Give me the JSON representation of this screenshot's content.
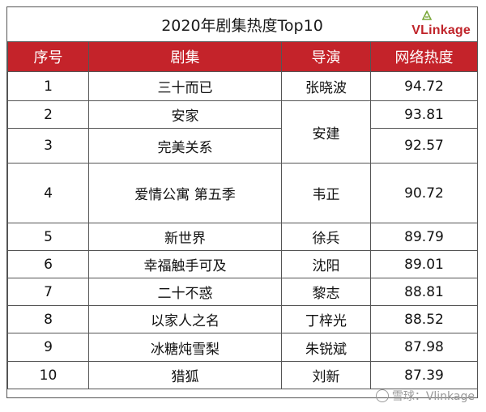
{
  "header": {
    "title": "2020年剧集热度Top10",
    "logo_text": "VLinkage"
  },
  "table": {
    "columns": [
      "序号",
      "剧集",
      "导演",
      "网络热度"
    ],
    "rows": [
      {
        "rank": "1",
        "drama": "三十而已",
        "director": "张晓波",
        "heat": "94.72"
      },
      {
        "rank": "2",
        "drama": "安家",
        "director": "安建",
        "heat": "93.81"
      },
      {
        "rank": "3",
        "drama": "完美关系",
        "director": "",
        "heat": "92.57"
      },
      {
        "rank": "4",
        "drama": "爱情公寓 第五季",
        "director": "韦正",
        "heat": "90.72"
      },
      {
        "rank": "5",
        "drama": "新世界",
        "director": "徐兵",
        "heat": "89.79"
      },
      {
        "rank": "6",
        "drama": "幸福触手可及",
        "director": "沈阳",
        "heat": "89.01"
      },
      {
        "rank": "7",
        "drama": "二十不惑",
        "director": "黎志",
        "heat": "88.81"
      },
      {
        "rank": "8",
        "drama": "以家人之名",
        "director": "丁梓光",
        "heat": "88.52"
      },
      {
        "rank": "9",
        "drama": "冰糖炖雪梨",
        "director": "朱锐斌",
        "heat": "87.98"
      },
      {
        "rank": "10",
        "drama": "猎狐",
        "director": "刘新",
        "heat": "87.39"
      }
    ]
  },
  "watermark": {
    "text": "雪球：Vlinkage"
  },
  "colors": {
    "header_red": "#c4232a",
    "logo_red": "#c0242a",
    "logo_green": "#7aa83a"
  }
}
